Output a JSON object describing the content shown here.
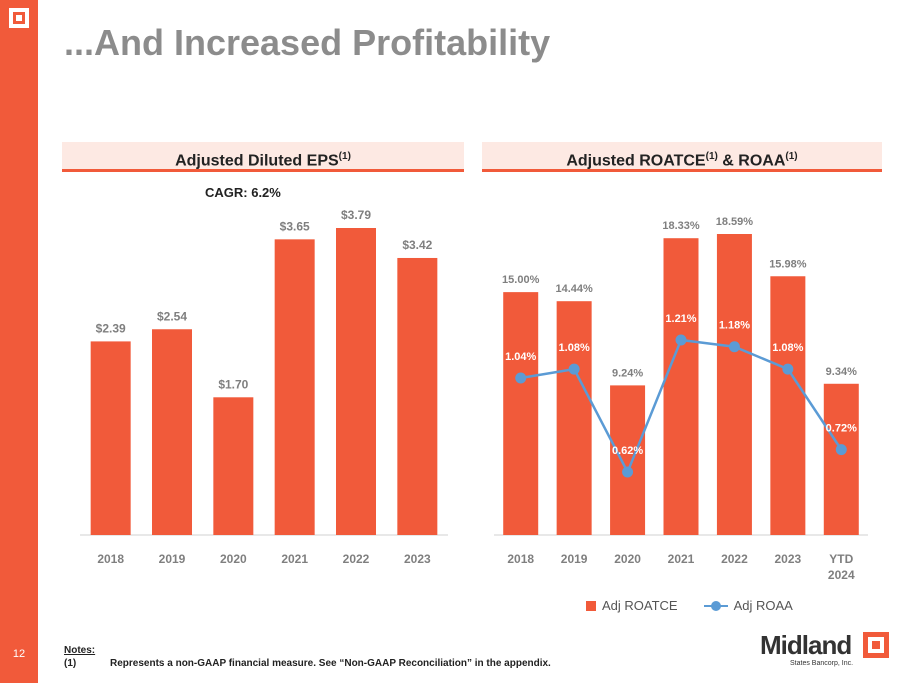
{
  "page": {
    "title": "...And Increased Profitability",
    "number": "12"
  },
  "eps_panel": {
    "heading": "Adjusted Diluted EPS",
    "heading_sup": "(1)",
    "cagr": "CAGR: 6.2%"
  },
  "roatce_panel": {
    "heading_a": "Adjusted ROATCE",
    "heading_sup_a": "(1)",
    "heading_b": " & ROAA",
    "heading_sup_b": "(1)"
  },
  "legend": {
    "bar_label": "Adj ROATCE",
    "line_label": "Adj ROAA"
  },
  "notes": {
    "title": "Notes:",
    "items": [
      {
        "num": "(1)",
        "text": "Represents a non-GAAP financial measure. See “Non-GAAP Reconciliation” in the appendix."
      }
    ]
  },
  "brand": {
    "name": "Midland",
    "sub": "States Bancorp, Inc."
  },
  "colors": {
    "accent": "#f15a3a",
    "line": "#5b9bd5",
    "title": "#8c8c8c",
    "panel_bg": "#fde9e3"
  },
  "chart_data": [
    {
      "type": "bar",
      "title": "Adjusted Diluted EPS",
      "categories": [
        "2018",
        "2019",
        "2020",
        "2021",
        "2022",
        "2023"
      ],
      "values": [
        2.39,
        2.54,
        1.7,
        3.65,
        3.79,
        3.42
      ],
      "labels": [
        "$2.39",
        "$2.54",
        "$1.70",
        "$3.65",
        "$3.79",
        "$3.42"
      ],
      "ylim": [
        0,
        4.0
      ],
      "annotation": "CAGR: 6.2%"
    },
    {
      "type": "bar",
      "title": "Adjusted ROATCE & ROAA",
      "categories": [
        "2018",
        "2019",
        "2020",
        "2021",
        "2022",
        "2023",
        "YTD 2024"
      ],
      "series": [
        {
          "name": "Adj ROATCE",
          "type": "bar",
          "values": [
            15.0,
            14.44,
            9.24,
            18.33,
            18.59,
            15.98,
            9.34
          ],
          "labels": [
            "15.00%",
            "14.44%",
            "9.24%",
            "18.33%",
            "18.59%",
            "15.98%",
            "9.34%"
          ]
        },
        {
          "name": "Adj ROAA",
          "type": "line",
          "values": [
            1.04,
            1.08,
            0.62,
            1.21,
            1.18,
            1.08,
            0.72
          ],
          "labels": [
            "1.04%",
            "1.08%",
            "0.62%",
            "1.21%",
            "1.18%",
            "1.08%",
            "0.72%"
          ]
        }
      ],
      "ylim": [
        0,
        20
      ],
      "ylim_secondary": [
        0.4,
        1.4
      ],
      "legend_position": "bottom"
    }
  ]
}
